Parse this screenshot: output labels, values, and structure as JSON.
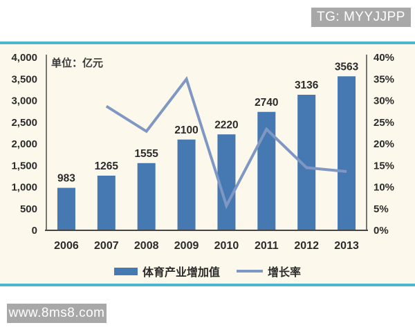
{
  "watermarks": {
    "top_right": "TG: MYYJJPP",
    "bottom_left": "www.8ms8.com"
  },
  "colors": {
    "bar": "#4678b2",
    "line": "#7f97c3",
    "panel_background": "#fcf8eb",
    "panel_border": "#4db5cc",
    "badge_background": "#a8a8a8",
    "axis_line": "#555555",
    "text": "#2b2b2b"
  },
  "chart_data": {
    "type": "bar",
    "subtype": "bar-line combo, dual axis",
    "title": "",
    "unit_label": "单位：亿元",
    "categories": [
      "2006",
      "2007",
      "2008",
      "2009",
      "2010",
      "2011",
      "2012",
      "2013"
    ],
    "series": [
      {
        "name": "体育产业增加值",
        "type": "bar",
        "axis": "left",
        "color": "#4678b2",
        "values": [
          983,
          1265,
          1555,
          2100,
          2220,
          2740,
          3136,
          3563
        ],
        "value_labels": [
          "983",
          "1265",
          "1555",
          "2100",
          "2220",
          "2740",
          "3136",
          "3563"
        ]
      },
      {
        "name": "增长率",
        "type": "line",
        "axis": "right",
        "color": "#7f97c3",
        "values": [
          null,
          28.7,
          22.9,
          35.0,
          5.7,
          23.4,
          14.5,
          13.6
        ]
      }
    ],
    "left_axis": {
      "min": 0,
      "max": 4000,
      "step": 500,
      "tick_labels": [
        "4,000",
        "3,500",
        "3,000",
        "2,500",
        "2,000",
        "1,500",
        "1,000",
        "500",
        "0"
      ]
    },
    "right_axis": {
      "min": 0,
      "max": 40,
      "step": 5,
      "tick_labels": [
        "40%",
        "35%",
        "30%",
        "25%",
        "20%",
        "15%",
        "10%",
        "5%",
        "0%"
      ]
    },
    "grid": "off",
    "legend_position": "bottom"
  }
}
